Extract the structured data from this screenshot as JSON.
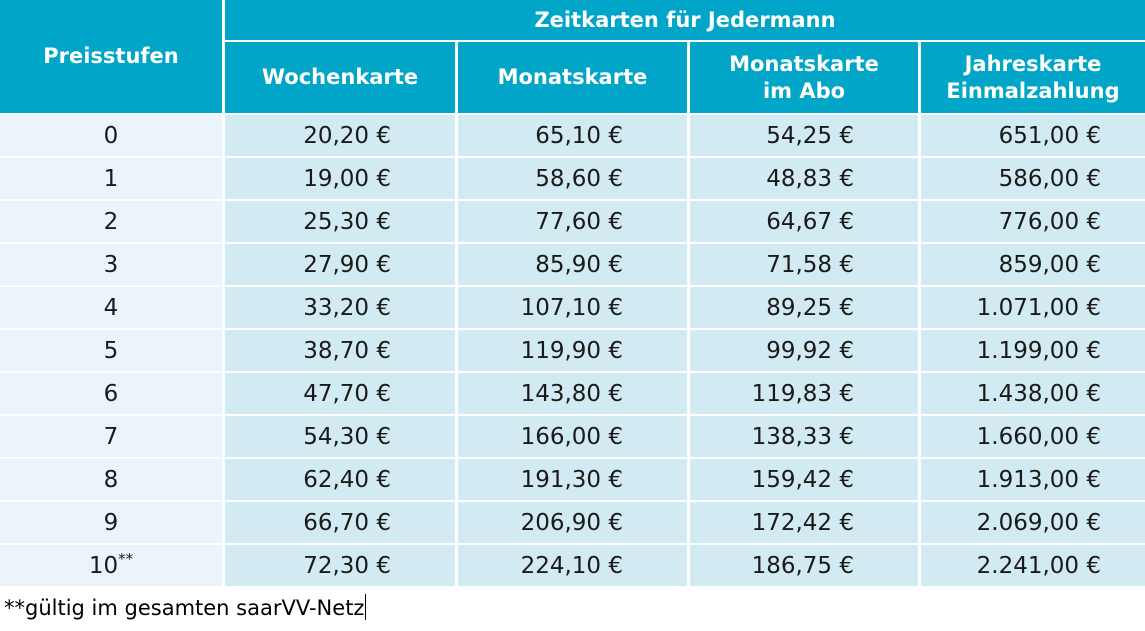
{
  "header": {
    "row_label": "Preisstufen",
    "group_label": "Zeitkarten für Jedermann",
    "columns": [
      {
        "line1": "Wochenkarte",
        "line2": ""
      },
      {
        "line1": "Monatskarte",
        "line2": ""
      },
      {
        "line1": "Monatskarte",
        "line2": "im Abo"
      },
      {
        "line1": "Jahreskarte",
        "line2": "Einmalzahlung"
      }
    ]
  },
  "rows": [
    {
      "stufe": "0",
      "sup": "",
      "values": [
        "20,20 €",
        "65,10 €",
        "54,25 €",
        "651,00 €"
      ]
    },
    {
      "stufe": "1",
      "sup": "",
      "values": [
        "19,00 €",
        "58,60 €",
        "48,83 €",
        "586,00 €"
      ]
    },
    {
      "stufe": "2",
      "sup": "",
      "values": [
        "25,30 €",
        "77,60 €",
        "64,67 €",
        "776,00 €"
      ]
    },
    {
      "stufe": "3",
      "sup": "",
      "values": [
        "27,90 €",
        "85,90 €",
        "71,58 €",
        "859,00 €"
      ]
    },
    {
      "stufe": "4",
      "sup": "",
      "values": [
        "33,20 €",
        "107,10 €",
        "89,25 €",
        "1.071,00 €"
      ]
    },
    {
      "stufe": "5",
      "sup": "",
      "values": [
        "38,70 €",
        "119,90 €",
        "99,92 €",
        "1.199,00 €"
      ]
    },
    {
      "stufe": "6",
      "sup": "",
      "values": [
        "47,70 €",
        "143,80 €",
        "119,83 €",
        "1.438,00 €"
      ]
    },
    {
      "stufe": "7",
      "sup": "",
      "values": [
        "54,30 €",
        "166,00 €",
        "138,33 €",
        "1.660,00 €"
      ]
    },
    {
      "stufe": "8",
      "sup": "",
      "values": [
        "62,40 €",
        "191,30 €",
        "159,42 €",
        "1.913,00 €"
      ]
    },
    {
      "stufe": "9",
      "sup": "",
      "values": [
        "66,70 €",
        "206,90 €",
        "172,42 €",
        "2.069,00 €"
      ]
    },
    {
      "stufe": "10",
      "sup": "**",
      "values": [
        "72,30 €",
        "224,10 €",
        "186,75 €",
        "2.241,00 €"
      ]
    }
  ],
  "footnote": "**gültig im gesamten saarVV-Netz"
}
